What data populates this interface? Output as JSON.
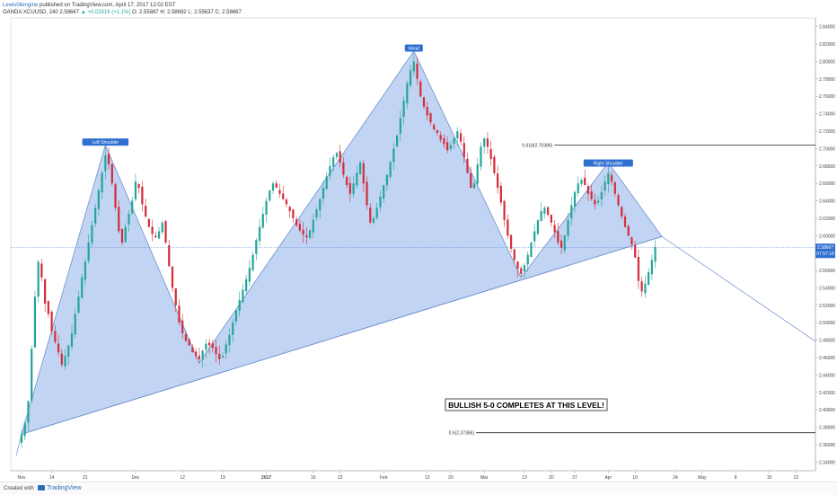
{
  "header": {
    "author": "Lewis0ilengine",
    "published": "published on TradingView.com, April 17, 2017 12:02 EST",
    "symbol": "OANDA:XCUUSD, 240",
    "last": "2.58667",
    "change": "▲ +0.02816 (+1.1%)",
    "ohlc": "O: 2.55887  H: 2.58692  L: 2.55637  C: 2.58667"
  },
  "footer": {
    "created": "Created with",
    "brand": "TradingView"
  },
  "chart_data": {
    "type": "candlestick",
    "title": "",
    "xlabel": "",
    "ylabel": "",
    "ylim": [
      2.33,
      2.85
    ],
    "grid": false,
    "y_ticks": [
      "2.84000",
      "2.82000",
      "2.80000",
      "2.78000",
      "2.76000",
      "2.74000",
      "2.72000",
      "2.70000",
      "2.68000",
      "2.66000",
      "2.64000",
      "2.62000",
      "2.60000",
      "2.58000",
      "2.56000",
      "2.54000",
      "2.52000",
      "2.50000",
      "2.48000",
      "2.46000",
      "2.44000",
      "2.42000",
      "2.40000",
      "2.38000",
      "2.36000",
      "2.34000"
    ],
    "x_ticks": [
      {
        "i": 0,
        "label": "Nov"
      },
      {
        "i": 9,
        "label": "14"
      },
      {
        "i": 19,
        "label": "21"
      },
      {
        "i": 34,
        "label": "Dec"
      },
      {
        "i": 48,
        "label": "12"
      },
      {
        "i": 60,
        "label": "19"
      },
      {
        "i": 73,
        "label": "2017"
      },
      {
        "i": 87,
        "label": "16"
      },
      {
        "i": 95,
        "label": "23"
      },
      {
        "i": 108,
        "label": "Feb"
      },
      {
        "i": 121,
        "label": "13"
      },
      {
        "i": 128,
        "label": "20"
      },
      {
        "i": 138,
        "label": "Mar"
      },
      {
        "i": 150,
        "label": "13"
      },
      {
        "i": 158,
        "label": "20"
      },
      {
        "i": 165,
        "label": "27"
      },
      {
        "i": 175,
        "label": "Apr"
      },
      {
        "i": 183,
        "label": "10"
      },
      {
        "i": 195,
        "label": "24"
      },
      {
        "i": 203,
        "label": "May"
      },
      {
        "i": 213,
        "label": "8"
      },
      {
        "i": 223,
        "label": "15"
      },
      {
        "i": 231,
        "label": "22"
      }
    ],
    "close": [
      2.372,
      2.385,
      2.41,
      2.47,
      2.53,
      2.57,
      2.552,
      2.522,
      2.51,
      2.49,
      2.478,
      2.466,
      2.452,
      2.462,
      2.474,
      2.488,
      2.51,
      2.53,
      2.552,
      2.57,
      2.592,
      2.612,
      2.632,
      2.652,
      2.672,
      2.692,
      2.682,
      2.66,
      2.632,
      2.605,
      2.592,
      2.61,
      2.625,
      2.64,
      2.662,
      2.655,
      2.636,
      2.622,
      2.61,
      2.602,
      2.598,
      2.605,
      2.615,
      2.592,
      2.565,
      2.54,
      2.52,
      2.5,
      2.488,
      2.479,
      2.474,
      2.466,
      2.462,
      2.458,
      2.468,
      2.476,
      2.474,
      2.471,
      2.464,
      2.458,
      2.462,
      2.475,
      2.486,
      2.5,
      2.514,
      2.526,
      2.538,
      2.55,
      2.563,
      2.578,
      2.595,
      2.61,
      2.625,
      2.64,
      2.652,
      2.66,
      2.655,
      2.648,
      2.642,
      2.636,
      2.628,
      2.62,
      2.612,
      2.606,
      2.601,
      2.598,
      2.606,
      2.618,
      2.63,
      2.642,
      2.655,
      2.668,
      2.68,
      2.69,
      2.695,
      2.684,
      2.67,
      2.658,
      2.648,
      2.66,
      2.672,
      2.684,
      2.66,
      2.635,
      2.615,
      2.62,
      2.632,
      2.645,
      2.658,
      2.67,
      2.685,
      2.7,
      2.715,
      2.735,
      2.755,
      2.775,
      2.79,
      2.8,
      2.78,
      2.76,
      2.748,
      2.738,
      2.73,
      2.722,
      2.718,
      2.71,
      2.705,
      2.698,
      2.704,
      2.712,
      2.72,
      2.708,
      2.69,
      2.672,
      2.655,
      2.66,
      2.682,
      2.702,
      2.712,
      2.702,
      2.688,
      2.672,
      2.655,
      2.638,
      2.618,
      2.6,
      2.585,
      2.572,
      2.562,
      2.556,
      2.566,
      2.578,
      2.592,
      2.605,
      2.618,
      2.628,
      2.632,
      2.624,
      2.615,
      2.604,
      2.592,
      2.586,
      2.6,
      2.618,
      2.635,
      2.65,
      2.66,
      2.664,
      2.658,
      2.648,
      2.642,
      2.636,
      2.64,
      2.65,
      2.662,
      2.672,
      2.662,
      2.648,
      2.635,
      2.622,
      2.61,
      2.6,
      2.59,
      2.575,
      2.548,
      2.536,
      2.545,
      2.558,
      2.572,
      2.587
    ],
    "annotations": [
      "Left Shoulder",
      "Head",
      "Right Shoulder",
      "BULLISH 5-0 COMPLETES AT THIS LEVEL!"
    ],
    "levels": [
      {
        "label": "0.618(2.70386)",
        "value": 2.70386
      },
      {
        "label": "0.5(2.37365)",
        "value": 2.37365
      }
    ],
    "current_price": {
      "value": 2.58667,
      "label": "2.58667",
      "sub": "07:57:18"
    },
    "pattern_fill": "#5b8fe0",
    "bull_color": "#26a69a",
    "bear_color": "#d32f3c"
  }
}
